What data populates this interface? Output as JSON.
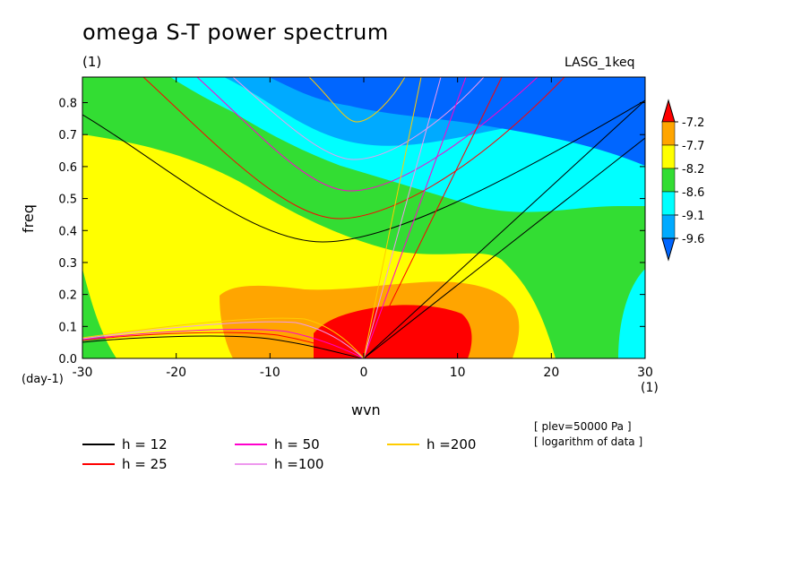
{
  "header": {
    "title": "omega S-T power spectrum",
    "subtitle": "(1)",
    "model": "LASG_1keq",
    "x_unit": "(1)",
    "y_unit": "(day-1)",
    "notes": [
      "[ plev=50000 Pa ]",
      "[ logarithm of data ]"
    ]
  },
  "chart_data": {
    "type": "heatmap",
    "title": "omega S-T power spectrum",
    "xlabel": "wvn",
    "ylabel": "freq",
    "xlim": [
      -30,
      30
    ],
    "ylim": [
      0,
      0.88
    ],
    "xticks": [
      -30,
      -20,
      -10,
      0,
      10,
      20,
      30
    ],
    "yticks": [
      0.0,
      0.1,
      0.2,
      0.3,
      0.4,
      0.5,
      0.6,
      0.7,
      0.8
    ],
    "colorbar": {
      "levels": [
        -7.2,
        -7.7,
        -8.2,
        -8.6,
        -9.1,
        -9.6
      ],
      "labels": [
        "-7.2",
        "-7.7",
        "-8.2",
        "-8.6",
        "-9.1",
        "-9.6"
      ],
      "colors": [
        "#ff0000",
        "#ffa500",
        "#ffff00",
        "#33dd33",
        "#00ffff",
        "#00aaff",
        "#0066ff"
      ]
    },
    "field_regions": [
      {
        "level": "<-9.6",
        "color": "#0066ff",
        "x": [
          -2,
          25
        ],
        "y": [
          0.73,
          0.88
        ]
      },
      {
        "level": "-9.6..-9.1",
        "color": "#00aaff",
        "x": [
          -10,
          30
        ],
        "y": [
          0.55,
          0.88
        ]
      },
      {
        "level": "-9.1..-8.6",
        "color": "#00ffff",
        "x": [
          -18,
          30
        ],
        "y": [
          0.0,
          0.88
        ]
      },
      {
        "level": "-8.6..-8.2",
        "color": "#33dd33",
        "x": [
          -30,
          30
        ],
        "y": [
          0.0,
          0.88
        ]
      },
      {
        "level": "-8.2..-7.7",
        "color": "#ffff00",
        "x": [
          -30,
          22
        ],
        "y": [
          0.0,
          0.68
        ]
      },
      {
        "level": "-7.7..-7.2",
        "color": "#ffa500",
        "x": [
          -15,
          16
        ],
        "y": [
          0.0,
          0.24
        ]
      },
      {
        "level": ">-7.2",
        "color": "#ff0000",
        "x": [
          -5,
          12
        ],
        "y": [
          0.0,
          0.16
        ]
      }
    ],
    "dispersion_curves": [
      {
        "name": "h = 12",
        "color": "#000000"
      },
      {
        "name": "h = 25",
        "color": "#ff0000"
      },
      {
        "name": "h = 50",
        "color": "#ff00cc"
      },
      {
        "name": "h =100",
        "color": "#ee99ee"
      },
      {
        "name": "h =200",
        "color": "#ffcc00"
      }
    ]
  }
}
